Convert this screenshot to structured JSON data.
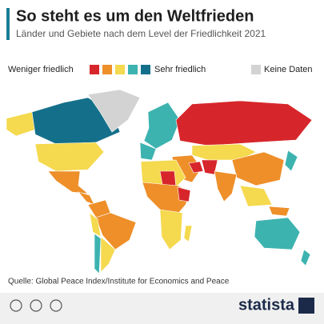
{
  "header": {
    "title": "So steht es um den Weltfrieden",
    "subtitle": "Länder und Gebiete nach dem Level der Friedlichkeit 2021"
  },
  "legend": {
    "left_label": "Weniger friedlich",
    "right_label": "Sehr friedlich",
    "colors": [
      "#d7262b",
      "#ee8f2a",
      "#f5d94e",
      "#3db3b0",
      "#14708a"
    ],
    "no_data_label": "Keine Daten",
    "no_data_color": "#d3d3d3"
  },
  "footer": {
    "source": "Quelle: Global Peace Index/Institute for Economics and Peace",
    "brand": "statista"
  }
}
